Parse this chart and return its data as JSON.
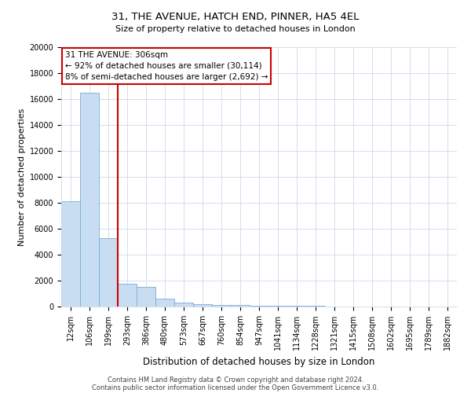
{
  "title": "31, THE AVENUE, HATCH END, PINNER, HA5 4EL",
  "subtitle": "Size of property relative to detached houses in London",
  "xlabel": "Distribution of detached houses by size in London",
  "ylabel": "Number of detached properties",
  "bar_labels": [
    "12sqm",
    "106sqm",
    "199sqm",
    "293sqm",
    "386sqm",
    "480sqm",
    "573sqm",
    "667sqm",
    "760sqm",
    "854sqm",
    "947sqm",
    "1041sqm",
    "1134sqm",
    "1228sqm",
    "1321sqm",
    "1415sqm",
    "1508sqm",
    "1602sqm",
    "1695sqm",
    "1789sqm",
    "1882sqm"
  ],
  "bar_heights": [
    8100,
    16500,
    5300,
    1750,
    1500,
    580,
    300,
    180,
    120,
    100,
    70,
    55,
    45,
    35,
    28,
    18,
    13,
    9,
    7,
    4,
    2
  ],
  "bar_color": "#c9ddf2",
  "bar_edge_color": "#7aadd4",
  "ylim": [
    0,
    20000
  ],
  "yticks": [
    0,
    2000,
    4000,
    6000,
    8000,
    10000,
    12000,
    14000,
    16000,
    18000,
    20000
  ],
  "vline_x": 2.5,
  "annotation_text": "31 THE AVENUE: 306sqm\n← 92% of detached houses are smaller (30,114)\n8% of semi-detached houses are larger (2,692) →",
  "annotation_box_color": "#ffffff",
  "annotation_box_edge": "#cc0000",
  "vline_color": "#cc0000",
  "footer1": "Contains HM Land Registry data © Crown copyright and database right 2024.",
  "footer2": "Contains public sector information licensed under the Open Government Licence v3.0.",
  "background_color": "#ffffff",
  "grid_color": "#cdd8eb",
  "title_fontsize": 9.5,
  "subtitle_fontsize": 8,
  "ylabel_fontsize": 8,
  "xlabel_fontsize": 8.5,
  "tick_fontsize": 7,
  "annotation_fontsize": 7.5,
  "footer_fontsize": 6
}
